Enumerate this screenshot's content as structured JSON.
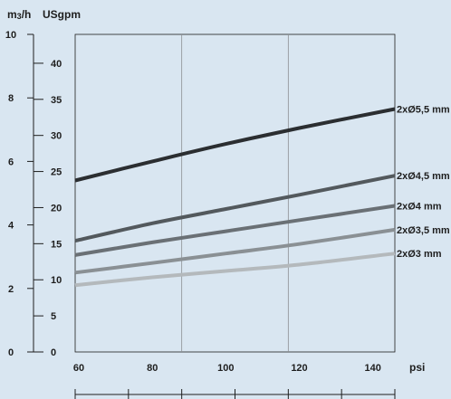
{
  "chart_data": {
    "type": "line",
    "title": "",
    "y_left": {
      "unit_main": "m",
      "unit_sup": "3",
      "unit_tail": "/h",
      "ticks": [
        "0",
        "2",
        "4",
        "6",
        "8",
        "10"
      ],
      "ylim": [
        0,
        10
      ]
    },
    "y_right": {
      "unit": "USgpm",
      "ticks": [
        "0",
        "5",
        "10",
        "15",
        "20",
        "25",
        "30",
        "35",
        "40"
      ],
      "ylim": [
        0,
        44
      ]
    },
    "x": {
      "unit": "psi",
      "ticks": [
        "60",
        "80",
        "100",
        "120",
        "140"
      ],
      "xlim": [
        59,
        146
      ]
    },
    "series": [
      {
        "name": "2xØ5,5 mm",
        "color": "#2b2e31",
        "points": [
          [
            59,
            5.4
          ],
          [
            80,
            6.0
          ],
          [
            100,
            6.55
          ],
          [
            120,
            7.05
          ],
          [
            146,
            7.65
          ]
        ]
      },
      {
        "name": "2xØ4,5 mm",
        "color": "#53595d",
        "points": [
          [
            59,
            3.5
          ],
          [
            80,
            4.05
          ],
          [
            100,
            4.5
          ],
          [
            120,
            4.95
          ],
          [
            146,
            5.55
          ]
        ]
      },
      {
        "name": "2xØ4 mm",
        "color": "#6a7075",
        "points": [
          [
            59,
            3.05
          ],
          [
            80,
            3.45
          ],
          [
            100,
            3.8
          ],
          [
            120,
            4.15
          ],
          [
            146,
            4.6
          ]
        ]
      },
      {
        "name": "2xØ3,5 mm",
        "color": "#8a9094",
        "points": [
          [
            59,
            2.5
          ],
          [
            80,
            2.8
          ],
          [
            100,
            3.1
          ],
          [
            120,
            3.4
          ],
          [
            146,
            3.85
          ]
        ]
      },
      {
        "name": "2xØ3 mm",
        "color": "#b4b9bc",
        "points": [
          [
            59,
            2.1
          ],
          [
            80,
            2.35
          ],
          [
            100,
            2.55
          ],
          [
            120,
            2.75
          ],
          [
            146,
            3.1
          ]
        ]
      }
    ],
    "grid": true,
    "legend": "right end of lines"
  }
}
